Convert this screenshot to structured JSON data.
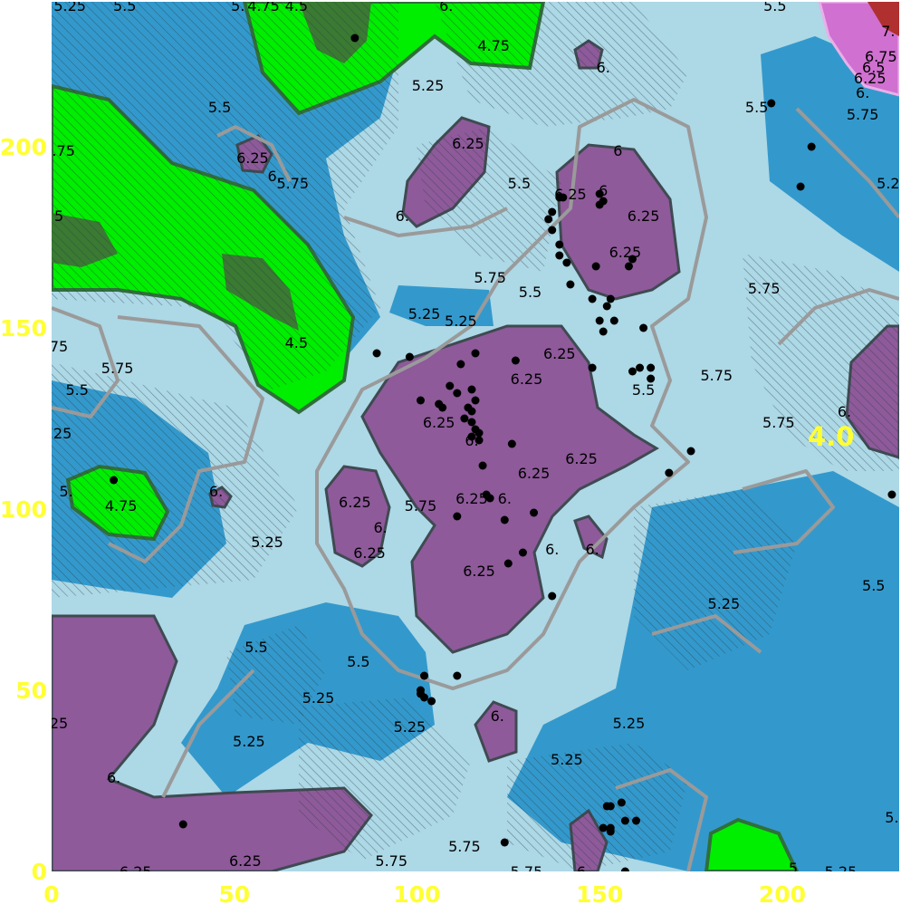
{
  "chart_data": {
    "type": "heatmap",
    "subtype": "filled-contour-map",
    "title": "",
    "xlabel": "",
    "ylabel": "",
    "xlim": [
      0,
      232
    ],
    "ylim": [
      0,
      240
    ],
    "x_ticks": [
      "0",
      "50",
      "100",
      "150",
      "200"
    ],
    "y_ticks": [
      "0",
      "50",
      "100",
      "150",
      "200"
    ],
    "grid": false,
    "hatching": "diagonal hatch overlays large areas",
    "colors": {
      "plot_background": "#add8e6",
      "level_5_25_and_below": "#3399cc",
      "level_4_75": "#00ee00",
      "level_4_5": "#3a7a32",
      "level_6_25": "#8e5a9a",
      "level_7": "#b03030",
      "level_6_75": "#d070d0",
      "contour_line": "#9a9a9a",
      "tick_color": "#ffff33",
      "point_color": "#000000"
    },
    "annotation": "4.0",
    "contour_labels": [
      {
        "text": "5.25",
        "x": 5,
        "y": 239
      },
      {
        "text": "5.5",
        "x": 20,
        "y": 239
      },
      {
        "text": "5.",
        "x": 51,
        "y": 239
      },
      {
        "text": "4.75",
        "x": 58,
        "y": 239
      },
      {
        "text": "4.5",
        "x": 67,
        "y": 239
      },
      {
        "text": "6.",
        "x": 108,
        "y": 239
      },
      {
        "text": "5.5",
        "x": 198,
        "y": 239
      },
      {
        "text": "4.75",
        "x": 121,
        "y": 228
      },
      {
        "text": "5.25",
        "x": 103,
        "y": 217
      },
      {
        "text": "6.",
        "x": 151,
        "y": 222
      },
      {
        "text": "7.",
        "x": 229,
        "y": 232
      },
      {
        "text": "6.75",
        "x": 227,
        "y": 225
      },
      {
        "text": "6.5",
        "x": 225,
        "y": 222
      },
      {
        "text": "6.25",
        "x": 224,
        "y": 219
      },
      {
        "text": "6.",
        "x": 222,
        "y": 215
      },
      {
        "text": "5.5",
        "x": 46,
        "y": 211
      },
      {
        "text": "5.5",
        "x": 193,
        "y": 211
      },
      {
        "text": "5.75",
        "x": 222,
        "y": 209
      },
      {
        "text": "5.75",
        "x": 2,
        "y": 199
      },
      {
        "text": "6.25",
        "x": 55,
        "y": 197
      },
      {
        "text": "6.",
        "x": 61,
        "y": 192
      },
      {
        "text": "5.75",
        "x": 66,
        "y": 190
      },
      {
        "text": "6.25",
        "x": 114,
        "y": 201
      },
      {
        "text": "6",
        "x": 155,
        "y": 199
      },
      {
        "text": "5.5",
        "x": 128,
        "y": 190
      },
      {
        "text": "6.25",
        "x": 142,
        "y": 187
      },
      {
        "text": "6",
        "x": 151,
        "y": 188
      },
      {
        "text": "6.25",
        "x": 162,
        "y": 181
      },
      {
        "text": "5.2",
        "x": 229,
        "y": 190
      },
      {
        "text": "5",
        "x": 2,
        "y": 181
      },
      {
        "text": "6.",
        "x": 96,
        "y": 181
      },
      {
        "text": "6.25",
        "x": 157,
        "y": 171
      },
      {
        "text": "5.75",
        "x": 120,
        "y": 164
      },
      {
        "text": "5.5",
        "x": 131,
        "y": 160
      },
      {
        "text": "5.75",
        "x": 195,
        "y": 161
      },
      {
        "text": "5.25",
        "x": 102,
        "y": 154
      },
      {
        "text": "5.25",
        "x": 112,
        "y": 152
      },
      {
        "text": "4.5",
        "x": 67,
        "y": 146
      },
      {
        "text": "6.25",
        "x": 139,
        "y": 143
      },
      {
        "text": "75",
        "x": 2,
        "y": 145
      },
      {
        "text": "5.75",
        "x": 18,
        "y": 139
      },
      {
        "text": "6.25",
        "x": 130,
        "y": 136
      },
      {
        "text": "5.5",
        "x": 7,
        "y": 133
      },
      {
        "text": "5.75",
        "x": 182,
        "y": 137
      },
      {
        "text": "5.5",
        "x": 162,
        "y": 133
      },
      {
        "text": "6.",
        "x": 217,
        "y": 127
      },
      {
        "text": "5.75",
        "x": 199,
        "y": 124
      },
      {
        "text": "25",
        "x": 3,
        "y": 121
      },
      {
        "text": "6.25",
        "x": 106,
        "y": 124
      },
      {
        "text": "6.",
        "x": 115,
        "y": 119
      },
      {
        "text": "6.25",
        "x": 145,
        "y": 114
      },
      {
        "text": "6.25",
        "x": 132,
        "y": 110
      },
      {
        "text": "5.",
        "x": 4,
        "y": 105
      },
      {
        "text": "6.",
        "x": 45,
        "y": 105
      },
      {
        "text": "4.75",
        "x": 19,
        "y": 101
      },
      {
        "text": "6.25",
        "x": 83,
        "y": 102
      },
      {
        "text": "5.75",
        "x": 101,
        "y": 101
      },
      {
        "text": "6.25",
        "x": 115,
        "y": 103
      },
      {
        "text": "6.",
        "x": 124,
        "y": 103
      },
      {
        "text": "6.",
        "x": 90,
        "y": 95
      },
      {
        "text": "5.25",
        "x": 59,
        "y": 91
      },
      {
        "text": "6.25",
        "x": 87,
        "y": 88
      },
      {
        "text": "6.",
        "x": 137,
        "y": 89
      },
      {
        "text": "6.",
        "x": 148,
        "y": 89
      },
      {
        "text": "6.25",
        "x": 117,
        "y": 83
      },
      {
        "text": "5.5",
        "x": 225,
        "y": 79
      },
      {
        "text": "5.25",
        "x": 184,
        "y": 74
      },
      {
        "text": "5.5",
        "x": 56,
        "y": 62
      },
      {
        "text": "5.5",
        "x": 84,
        "y": 58
      },
      {
        "text": "5.25",
        "x": 73,
        "y": 48
      },
      {
        "text": "5.25",
        "x": 98,
        "y": 40
      },
      {
        "text": "5.25",
        "x": 158,
        "y": 41
      },
      {
        "text": "25",
        "x": 2,
        "y": 41
      },
      {
        "text": "6.",
        "x": 122,
        "y": 43
      },
      {
        "text": "5.25",
        "x": 54,
        "y": 36
      },
      {
        "text": "5.25",
        "x": 141,
        "y": 31
      },
      {
        "text": "6.",
        "x": 17,
        "y": 26
      },
      {
        "text": "5.75",
        "x": 113,
        "y": 7
      },
      {
        "text": "5.",
        "x": 230,
        "y": 15
      },
      {
        "text": "6.25",
        "x": 53,
        "y": 3
      },
      {
        "text": "5.75",
        "x": 93,
        "y": 3
      },
      {
        "text": "6.25",
        "x": 23,
        "y": 0
      },
      {
        "text": "5.75",
        "x": 130,
        "y": 0
      },
      {
        "text": "6",
        "x": 145,
        "y": 0
      },
      {
        "text": "5",
        "x": 203,
        "y": 1
      },
      {
        "text": "5.25",
        "x": 216,
        "y": 0
      }
    ],
    "points": [
      [
        83,
        230
      ],
      [
        197,
        212
      ],
      [
        208,
        200
      ],
      [
        205,
        189
      ],
      [
        140,
        186
      ],
      [
        139,
        186
      ],
      [
        150,
        187
      ],
      [
        151,
        185
      ],
      [
        150,
        184
      ],
      [
        137,
        182
      ],
      [
        136,
        180
      ],
      [
        137,
        177
      ],
      [
        139,
        173
      ],
      [
        139,
        170
      ],
      [
        141,
        168
      ],
      [
        149,
        167
      ],
      [
        159,
        169
      ],
      [
        158,
        167
      ],
      [
        142,
        162
      ],
      [
        148,
        158
      ],
      [
        153,
        158
      ],
      [
        152,
        156
      ],
      [
        154,
        152
      ],
      [
        150,
        152
      ],
      [
        162,
        150
      ],
      [
        151,
        149
      ],
      [
        89,
        143
      ],
      [
        98,
        142
      ],
      [
        116,
        143
      ],
      [
        112,
        140
      ],
      [
        127,
        141
      ],
      [
        148,
        139
      ],
      [
        159,
        138
      ],
      [
        161,
        139
      ],
      [
        164,
        139
      ],
      [
        164,
        136
      ],
      [
        109,
        134
      ],
      [
        111,
        132
      ],
      [
        115,
        133
      ],
      [
        101,
        130
      ],
      [
        106,
        129
      ],
      [
        107,
        128
      ],
      [
        114,
        128
      ],
      [
        115,
        127
      ],
      [
        116,
        130
      ],
      [
        113,
        125
      ],
      [
        115,
        124
      ],
      [
        116,
        122
      ],
      [
        117,
        121
      ],
      [
        115,
        120
      ],
      [
        117,
        119
      ],
      [
        126,
        118
      ],
      [
        175,
        116
      ],
      [
        118,
        112
      ],
      [
        169,
        110
      ],
      [
        119,
        104
      ],
      [
        120,
        103
      ],
      [
        124,
        97
      ],
      [
        132,
        99
      ],
      [
        111,
        98
      ],
      [
        230,
        104
      ],
      [
        17,
        108
      ],
      [
        129,
        88
      ],
      [
        125,
        85
      ],
      [
        137,
        76
      ],
      [
        102,
        54
      ],
      [
        111,
        54
      ],
      [
        101,
        50
      ],
      [
        101,
        49
      ],
      [
        102,
        48
      ],
      [
        104,
        47
      ],
      [
        153,
        18
      ],
      [
        152,
        18
      ],
      [
        156,
        19
      ],
      [
        157,
        14
      ],
      [
        160,
        14
      ],
      [
        151,
        12
      ],
      [
        153,
        11
      ],
      [
        153,
        12
      ],
      [
        36,
        13
      ],
      [
        124,
        8
      ],
      [
        157,
        0
      ]
    ]
  }
}
